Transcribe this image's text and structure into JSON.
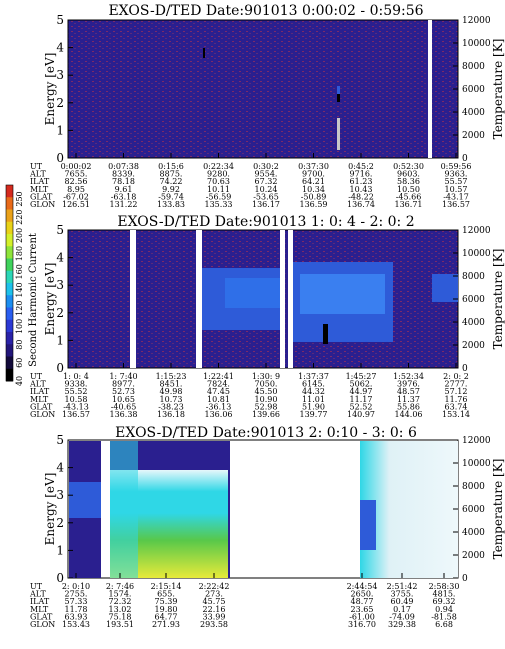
{
  "colors": {
    "background": "#2a1f8f",
    "noise": "#7a2a6a",
    "mid_band": "#2e5bd8",
    "bright_cyan": "#2fd7e6",
    "green": "#58c84a",
    "yellow": "#e7ea3a"
  },
  "colorbar": {
    "label": "Second Harmonic Current",
    "ticks": [
      "250",
      "220",
      "200",
      "180",
      "160",
      "140",
      "120",
      "100",
      "80",
      "60",
      "40"
    ],
    "colors": [
      "#d42a1e",
      "#e86a1a",
      "#eaa21a",
      "#e9d218",
      "#d4f02a",
      "#8ee43a",
      "#3fd25c",
      "#2bd6b7",
      "#1ec1ea",
      "#1c8ef0",
      "#2a5ef0",
      "#2b38d4",
      "#2a22a8",
      "#22167a",
      "#120a3a",
      "#000000"
    ]
  },
  "chart_data": [
    {
      "type": "heatmap",
      "title": "EXOS-D/TED   Date:901013   0:00:02 - 0:59:56",
      "ylabel": "Energy [eV]",
      "ylabel_right": "Temperature [K]",
      "yticks": [
        "0",
        "1",
        "2",
        "3",
        "4",
        "5"
      ],
      "yticks_right": [
        "0",
        "2000",
        "4000",
        "6000",
        "8000",
        "10000",
        "12000"
      ],
      "ylim": [
        0,
        5
      ],
      "ylim_right": [
        0,
        12000
      ],
      "gaps_time_fraction": [
        [
          0.965,
          0.972
        ]
      ],
      "dominant": "low-level background with sparse noise; small bright features near 0:37",
      "table": {
        "row_labels": [
          "UT",
          "ALT",
          "ILAT",
          "MLT",
          "GLAT",
          "GLON"
        ],
        "columns": [
          [
            "0:00:02",
            "7655.",
            "82.56",
            "8.95",
            "-67.02",
            "126.51"
          ],
          [
            "0:07:38",
            "8339.",
            "78.18",
            "9.61",
            "-63.18",
            "131.22"
          ],
          [
            "0:15:6",
            "8875.",
            "74.22",
            "9.92",
            "-59.74",
            "133.83"
          ],
          [
            "0:22:34",
            "9280.",
            "70.63",
            "10.11",
            "-56.59",
            "135.33"
          ],
          [
            "0:30:2",
            "9554.",
            "67.32",
            "10.24",
            "-53.65",
            "136.17"
          ],
          [
            "0:37:30",
            "9700.",
            "64.21",
            "10.34",
            "-50.89",
            "136.59"
          ],
          [
            "0:45:2",
            "9716.",
            "61.23",
            "10.43",
            "-48.22",
            "136.74"
          ],
          [
            "0:52:30",
            "9603.",
            "58.36",
            "10.50",
            "-45.66",
            "136.71"
          ],
          [
            "0:59:56",
            "9363.",
            "55.57",
            "10.57",
            "-43.17",
            "136.57"
          ]
        ]
      }
    },
    {
      "type": "heatmap",
      "title": "EXOS-D/TED   Date:901013  1: 0: 4 - 2: 0: 2",
      "ylabel": "Energy [eV]",
      "ylabel_right": "Temperature [K]",
      "yticks": [
        "0",
        "1",
        "2",
        "3",
        "4",
        "5"
      ],
      "yticks_right": [
        "0",
        "2000",
        "4000",
        "6000",
        "8000",
        "10000",
        "12000"
      ],
      "ylim": [
        0,
        5
      ],
      "ylim_right": [
        0,
        12000
      ],
      "dominant": "mid-level band around 2.5-3.5 eV from 1:22 to 2:00",
      "table": {
        "row_labels": [
          "UT",
          "ALT",
          "ILAT",
          "MLT",
          "GLAT",
          "GLON"
        ],
        "columns": [
          [
            "1: 0: 4",
            "9338.",
            "55.52",
            "10.58",
            "-43.13",
            "136.57"
          ],
          [
            "1: 7:40",
            "8977.",
            "52.73",
            "10.65",
            "-40.65",
            "136.38"
          ],
          [
            "1:15:23",
            "8451.",
            "49.98",
            "10.73",
            "-38.23",
            "136.18"
          ],
          [
            "1:22:41",
            "7824.",
            "47.45",
            "10.81",
            "-36.13",
            "136.06"
          ],
          [
            "1:30: 9",
            "7050.",
            "45.50",
            "10.90",
            "52.98",
            "139.66"
          ],
          [
            "1:37:37",
            "6145.",
            "44.32",
            "11.01",
            "51.90",
            "139.77"
          ],
          [
            "1:45:27",
            "5062.",
            "44.97",
            "11.17",
            "52.52",
            "140.97"
          ],
          [
            "1:52:34",
            "3976.",
            "48.57",
            "11.37",
            "55.86",
            "144.06"
          ],
          [
            "2: 0: 2",
            "2777.",
            "57.12",
            "11.76",
            "63.74",
            "153.14"
          ]
        ]
      }
    },
    {
      "type": "heatmap",
      "title": "EXOS-D/TED   Date:901013  2: 0:10 - 3: 0: 6",
      "ylabel": "Energy [eV]",
      "ylabel_right": "Temperature [K]",
      "yticks": [
        "0",
        "1",
        "2",
        "3",
        "4",
        "5"
      ],
      "yticks_right": [
        "0",
        "2000",
        "4000",
        "6000",
        "8000",
        "10000",
        "12000"
      ],
      "ylim": [
        0,
        5
      ],
      "ylim_right": [
        0,
        12000
      ],
      "dominant": "bright cyan/green/yellow emission 2:07-2:22; data gap mid-panel",
      "table": {
        "row_labels": [
          "UT",
          "ALT",
          "ILAT",
          "MLT",
          "GLAT",
          "GLON"
        ],
        "columns": [
          [
            "2: 0:10",
            "2755.",
            "57.33",
            "11.78",
            "63.93",
            "153.43"
          ],
          [
            "2: 7:46",
            "1574.",
            "72.32",
            "13.02",
            "75.18",
            "193.51"
          ],
          [
            "2:15:14",
            "655.",
            "75.39",
            "19.80",
            "64.77",
            "271.93"
          ],
          [
            "2:22:42",
            "273.",
            "45.75",
            "22.16",
            "33.99",
            "293.58"
          ],
          [
            "2:44:54",
            "2650.",
            "48.77",
            "23.65",
            "-61.00",
            "316.70"
          ],
          [
            "2:51:42",
            "3755.",
            "60.49",
            "0.17",
            "-74.09",
            "329.38"
          ],
          [
            "2:58:30",
            "4815.",
            "69.32",
            "0.94",
            "-81.58",
            "6.68"
          ]
        ]
      }
    }
  ]
}
